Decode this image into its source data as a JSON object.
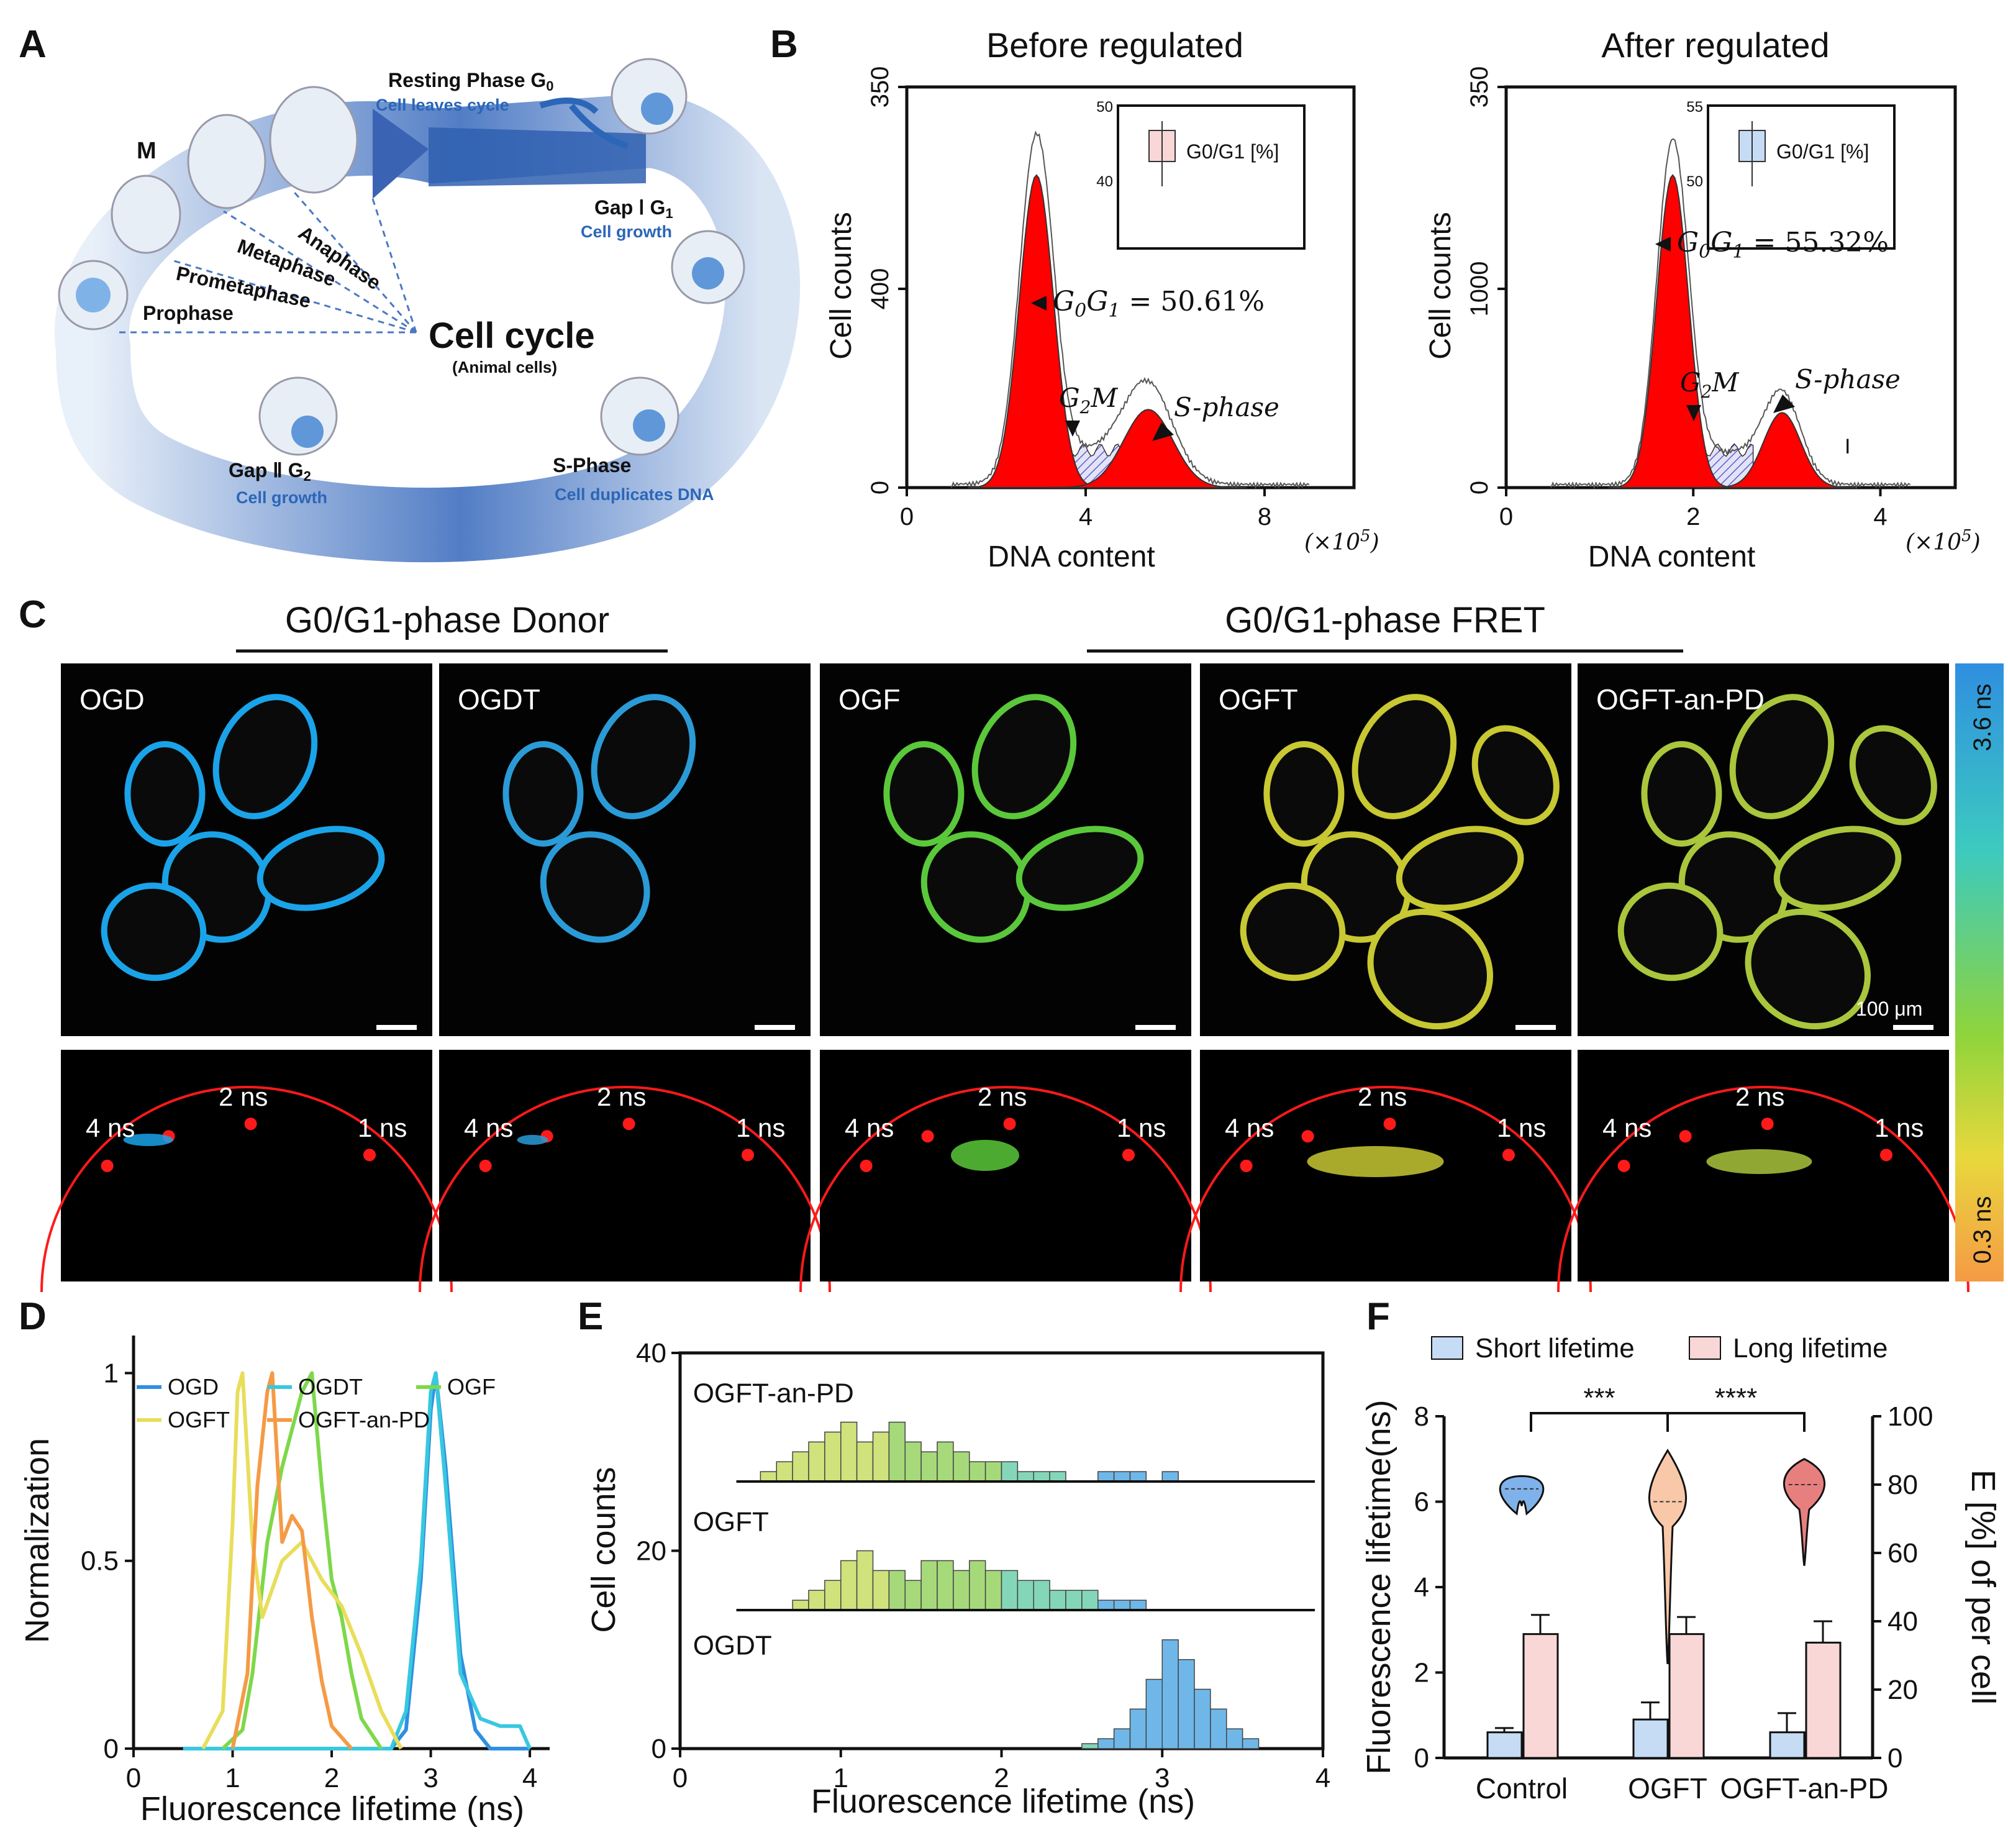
{
  "panel_letters": {
    "a": "A",
    "b": "B",
    "c": "C",
    "d": "D",
    "e": "E",
    "f": "F"
  },
  "panel_a": {
    "center_title": "Cell cycle",
    "center_sub": "(Animal cells)",
    "m_label": "M",
    "resting": "Resting Phase G",
    "resting_sub": "0",
    "resting_note": "Cell leaves cycle",
    "gap1": "Gap Ⅰ G",
    "gap1_sub": "1",
    "gap1_note": "Cell growth",
    "gap2": "Gap Ⅱ G",
    "gap2_sub": "2",
    "gap2_note": "Cell growth",
    "sphase": "S-Phase",
    "sphase_note": "Cell duplicates DNA",
    "stages": [
      "Anaphase",
      "Metaphase",
      "Prometaphase",
      "Prophase"
    ],
    "colors": {
      "ring": "#3f6fbf",
      "accent_text": "#2b66b8"
    }
  },
  "panel_b": {
    "left": {
      "title": "Before regulated",
      "y_ticks": [
        "0",
        "400",
        "350"
      ],
      "x_ticks": [
        "0",
        "4",
        "8"
      ],
      "x_exp": "(×10",
      "x_exp_power": "5",
      "x_exp_close": ")",
      "xlabel": "DNA content",
      "ylabel": "Cell counts",
      "g0g1": "= 50.61%",
      "inset_ticks": [
        "50",
        "40"
      ],
      "inset_label": "G0/G1 [%]",
      "g2m": "G",
      "g2m_sub": "2",
      "g2m_tail": "M",
      "sphase": "S-phase",
      "g0g1_prefix": "G",
      "g0g1_sub1": "0",
      "g0g1_mid": "G",
      "g0g1_sub2": "1"
    },
    "right": {
      "title": "After regulated",
      "y_ticks": [
        "0",
        "1000",
        "350"
      ],
      "x_ticks": [
        "0",
        "2",
        "4"
      ],
      "x_exp": "(×10",
      "x_exp_power": "5",
      "x_exp_close": ")",
      "xlabel": "DNA content",
      "ylabel": "Cell counts",
      "g0g1": "= 55.32%",
      "inset_ticks": [
        "55",
        "50"
      ],
      "inset_label": "G0/G1 [%]",
      "g2m": "G",
      "g2m_sub": "2",
      "g2m_tail": "M",
      "sphase": "S-phase",
      "g0g1_prefix": "G",
      "g0g1_sub1": "0",
      "g0g1_mid": "G",
      "g0g1_sub2": "1",
      "stray_mark": "I"
    },
    "colors": {
      "peak": "#ff0000",
      "hatch": "#6a6ad8",
      "inset_left": "#f9d7d7",
      "inset_right": "#c6dcf5"
    }
  },
  "panel_c": {
    "donor_header": "G0/G1-phase Donor",
    "fret_header": "G0/G1-phase FRET",
    "images": [
      "OGD",
      "OGDT",
      "OGF",
      "OGFT",
      "OGFT-an-PD"
    ],
    "image_tints": [
      "#1aa3e8",
      "#2a9bd6",
      "#5ac83a",
      "#c7c832",
      "#a9c63c"
    ],
    "scale_label": "100 μm",
    "phasor_labels": {
      "left": "4 ns",
      "mid": "2 ns",
      "right": "1 ns"
    },
    "colorbar": {
      "top": "3.6 ns",
      "bottom": "0.3 ns"
    }
  },
  "panel_d": {
    "chart_data": {
      "type": "line",
      "xlabel": "Fluorescence lifetime (ns)",
      "ylabel": "Normalization",
      "xlim": [
        0,
        4.2
      ],
      "ylim": [
        0,
        1.1
      ],
      "x_ticks": [
        "0",
        "1",
        "2",
        "3",
        "4"
      ],
      "y_ticks": [
        "0",
        "0.5",
        "1"
      ],
      "series": [
        {
          "name": "OGD",
          "color": "#2f8fe0",
          "x": [
            0.5,
            2.6,
            2.75,
            2.9,
            3.0,
            3.05,
            3.15,
            3.3,
            3.45,
            3.6,
            4.0
          ],
          "y": [
            0,
            0,
            0.05,
            0.45,
            0.9,
            1.0,
            0.75,
            0.25,
            0.05,
            0,
            0
          ]
        },
        {
          "name": "OGDT",
          "color": "#38c8e0",
          "x": [
            0.5,
            2.6,
            2.75,
            2.9,
            3.0,
            3.05,
            3.15,
            3.3,
            3.5,
            3.7,
            3.9,
            4.0
          ],
          "y": [
            0,
            0,
            0.1,
            0.5,
            0.95,
            1.0,
            0.7,
            0.2,
            0.08,
            0.06,
            0.06,
            0
          ]
        },
        {
          "name": "OGF",
          "color": "#7ed84a",
          "x": [
            0.9,
            1.1,
            1.2,
            1.35,
            1.5,
            1.6,
            1.7,
            1.8,
            1.9,
            2.0,
            2.1,
            2.2,
            2.3,
            2.5
          ],
          "y": [
            0,
            0.05,
            0.2,
            0.55,
            0.75,
            0.85,
            0.95,
            1.0,
            0.7,
            0.45,
            0.35,
            0.2,
            0.08,
            0
          ]
        },
        {
          "name": "OGFT",
          "color": "#e8de5a",
          "x": [
            0.7,
            0.9,
            1.0,
            1.05,
            1.1,
            1.2,
            1.3,
            1.5,
            1.7,
            1.9,
            2.1,
            2.3,
            2.5,
            2.7
          ],
          "y": [
            0,
            0.1,
            0.6,
            0.95,
            1.0,
            0.55,
            0.35,
            0.5,
            0.55,
            0.45,
            0.38,
            0.25,
            0.1,
            0
          ]
        },
        {
          "name": "OGFT-an-PD",
          "color": "#f59a45",
          "x": [
            1.0,
            1.15,
            1.25,
            1.35,
            1.4,
            1.5,
            1.6,
            1.7,
            1.8,
            1.9,
            2.0,
            2.2
          ],
          "y": [
            0,
            0.2,
            0.7,
            0.95,
            1.0,
            0.55,
            0.62,
            0.58,
            0.35,
            0.18,
            0.06,
            0
          ]
        }
      ]
    }
  },
  "panel_e": {
    "chart_data": {
      "type": "bar",
      "xlabel": "Fluorescence lifetime (ns)",
      "ylabel": "Cell counts",
      "xlim": [
        0,
        4
      ],
      "ylim": [
        0,
        40
      ],
      "x_ticks": [
        "0",
        "1",
        "2",
        "3",
        "4"
      ],
      "y_ticks": [
        "0",
        "20",
        "40"
      ],
      "bin_width": 0.1,
      "series": [
        {
          "name": "OGFT-an-PD",
          "offset": 27,
          "starts": [
            0.5,
            0.6,
            0.7,
            0.8,
            0.9,
            1.0,
            1.1,
            1.2,
            1.3,
            1.4,
            1.5,
            1.6,
            1.7,
            1.8,
            1.9,
            2.0,
            2.1,
            2.2,
            2.3,
            2.4,
            2.5,
            2.6,
            2.7,
            2.8,
            2.9,
            3.0
          ],
          "counts": [
            1,
            2,
            3,
            4,
            5,
            6,
            4,
            5,
            6,
            4,
            3,
            4,
            3,
            2,
            2,
            2,
            1,
            1,
            1,
            0,
            0,
            1,
            1,
            1,
            0,
            1
          ]
        },
        {
          "name": "OGFT",
          "offset": 14,
          "starts": [
            0.7,
            0.8,
            0.9,
            1.0,
            1.1,
            1.2,
            1.3,
            1.4,
            1.5,
            1.6,
            1.7,
            1.8,
            1.9,
            2.0,
            2.1,
            2.2,
            2.3,
            2.4,
            2.5,
            2.6,
            2.7,
            2.8,
            2.9,
            3.0
          ],
          "counts": [
            1,
            2,
            3,
            5,
            6,
            4,
            4,
            3,
            5,
            5,
            4,
            5,
            4,
            4,
            3,
            3,
            2,
            2,
            2,
            1,
            1,
            1,
            0,
            0
          ]
        },
        {
          "name": "OGDT",
          "offset": 0,
          "starts": [
            2.5,
            2.6,
            2.7,
            2.8,
            2.9,
            3.0,
            3.1,
            3.2,
            3.3,
            3.4,
            3.5
          ],
          "counts": [
            0.5,
            1,
            2,
            4,
            7,
            11,
            9,
            6,
            4,
            2,
            1
          ]
        }
      ]
    }
  },
  "panel_f": {
    "legend": [
      "Short lifetime",
      "Long lifetime"
    ],
    "significance": [
      "***",
      "****"
    ],
    "chart_data": {
      "type": "bar",
      "categories": [
        "Control",
        "OGFT",
        "OGFT-an-PD"
      ],
      "ylabel": "Fluorescence lifetime(ns)",
      "y2label": "E [%] of per cell",
      "ylim": [
        0,
        8
      ],
      "y2lim": [
        0,
        100
      ],
      "y_ticks": [
        "0",
        "2",
        "4",
        "6",
        "8"
      ],
      "y2_ticks": [
        "0",
        "20",
        "40",
        "60",
        "80",
        "100"
      ],
      "series": [
        {
          "name": "Short lifetime",
          "color": "#c6dcf5",
          "values": [
            0.6,
            0.9,
            0.6
          ],
          "errors": [
            0.1,
            0.4,
            0.45
          ]
        },
        {
          "name": "Long lifetime",
          "color": "#f9d7d7",
          "values": [
            2.9,
            2.9,
            2.7
          ],
          "errors": [
            0.45,
            0.4,
            0.5
          ]
        }
      ],
      "violins": [
        {
          "category": "Control",
          "center": 6.3,
          "min": 5.9,
          "max": 6.6,
          "color": "#7fb2ea"
        },
        {
          "category": "OGFT",
          "center": 6.0,
          "min": 2.2,
          "max": 7.2,
          "color": "#f8c8a8"
        },
        {
          "category": "OGFT-an-PD",
          "center": 6.4,
          "min": 4.5,
          "max": 7.0,
          "color": "#e87f7f"
        }
      ]
    }
  }
}
